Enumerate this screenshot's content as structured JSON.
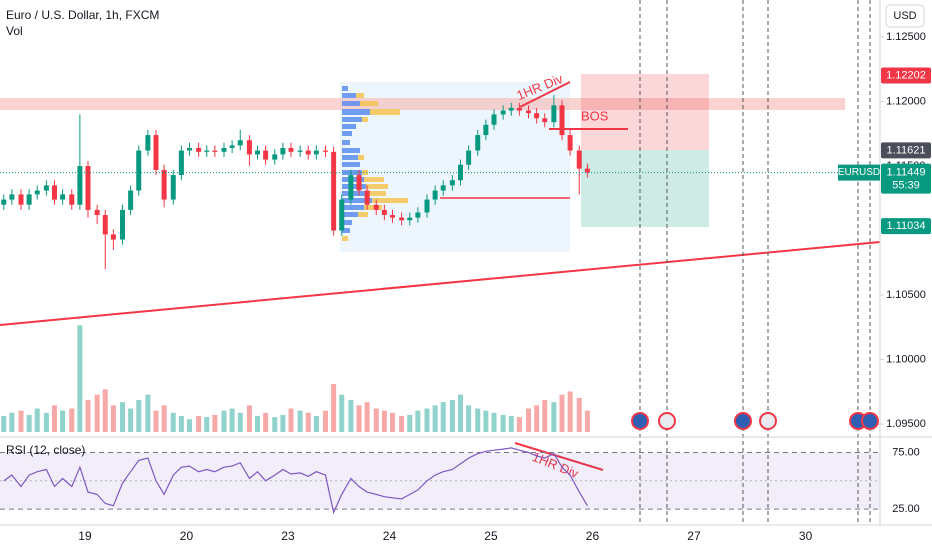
{
  "header": {
    "title": "Euro / U.S. Dollar, 1h, FXCM",
    "volume_label": "Vol",
    "currency": "USD"
  },
  "annotations": {
    "div_price": "1HR Div",
    "bos": "BOS",
    "div_rsi": "1HR Div"
  },
  "chart_data": [
    {
      "type": "candlestick",
      "x": [
        0.2,
        0.28,
        0.37,
        0.45,
        0.53,
        0.62,
        0.7,
        0.78,
        0.87,
        0.95,
        1.03,
        1.12,
        1.2,
        1.28,
        1.37,
        1.45,
        1.53,
        1.62,
        1.7,
        1.78,
        1.87,
        1.95,
        2.03,
        2.12,
        2.2,
        2.28,
        2.37,
        2.45,
        2.53,
        2.62,
        2.7,
        2.78,
        2.87,
        2.95,
        3.03,
        3.12,
        3.2,
        3.28,
        3.37,
        3.45,
        3.53,
        3.62,
        3.7,
        3.78,
        3.87,
        3.95,
        4.03,
        4.12,
        4.2,
        4.28,
        4.37,
        4.45,
        4.53,
        4.62,
        4.7,
        4.78,
        4.87,
        4.95,
        5.03,
        5.12,
        5.2,
        5.28,
        5.37,
        5.45,
        5.53,
        5.62,
        5.7,
        5.78,
        5.87,
        5.95
      ],
      "open": [
        1.112,
        1.1124,
        1.1128,
        1.112,
        1.1128,
        1.1131,
        1.1135,
        1.1124,
        1.1128,
        1.112,
        1.115,
        1.1116,
        1.1112,
        1.1097,
        1.1093,
        1.1116,
        1.1131,
        1.1162,
        1.1174,
        1.1147,
        1.1124,
        1.1143,
        1.1162,
        1.1164,
        1.1161,
        1.1162,
        1.1161,
        1.1164,
        1.1166,
        1.117,
        1.1159,
        1.1162,
        1.1155,
        1.1159,
        1.1164,
        1.1161,
        1.1162,
        1.1159,
        1.1162,
        1.1161,
        1.11,
        1.1124,
        1.1143,
        1.1131,
        1.112,
        1.1116,
        1.1112,
        1.111,
        1.1108,
        1.111,
        1.1114,
        1.1124,
        1.1131,
        1.1135,
        1.1139,
        1.1151,
        1.1162,
        1.1174,
        1.1182,
        1.119,
        1.1193,
        1.1195,
        1.1193,
        1.1191,
        1.1187,
        1.1184,
        1.1197,
        1.1174,
        1.1162,
        1.1148
      ],
      "high": [
        1.1128,
        1.1132,
        1.1132,
        1.1132,
        1.1135,
        1.1139,
        1.1139,
        1.1132,
        1.1132,
        1.119,
        1.1154,
        1.112,
        1.1116,
        1.1101,
        1.112,
        1.1135,
        1.1166,
        1.1178,
        1.1178,
        1.1151,
        1.1147,
        1.1166,
        1.1168,
        1.1168,
        1.1166,
        1.1166,
        1.1168,
        1.117,
        1.1178,
        1.1174,
        1.1166,
        1.1166,
        1.1163,
        1.1168,
        1.1168,
        1.1166,
        1.1166,
        1.1166,
        1.1166,
        1.1165,
        1.1128,
        1.1147,
        1.1147,
        1.1135,
        1.1124,
        1.112,
        1.1116,
        1.1114,
        1.1114,
        1.1118,
        1.1128,
        1.1135,
        1.1139,
        1.1143,
        1.1155,
        1.1166,
        1.1178,
        1.1186,
        1.1194,
        1.1197,
        1.1199,
        1.1199,
        1.1197,
        1.1195,
        1.1191,
        1.1205,
        1.1201,
        1.1178,
        1.1166,
        1.1152
      ],
      "low": [
        1.1116,
        1.112,
        1.1116,
        1.1116,
        1.1124,
        1.1127,
        1.112,
        1.112,
        1.1116,
        1.1116,
        1.111,
        1.1105,
        1.107,
        1.1085,
        1.1089,
        1.1112,
        1.1127,
        1.1158,
        1.1143,
        1.1118,
        1.112,
        1.1139,
        1.1158,
        1.1157,
        1.1157,
        1.1157,
        1.1157,
        1.116,
        1.1162,
        1.115,
        1.1155,
        1.1151,
        1.1151,
        1.1155,
        1.1157,
        1.1157,
        1.1155,
        1.1155,
        1.1157,
        1.1096,
        1.1096,
        1.112,
        1.1127,
        1.1116,
        1.1112,
        1.1108,
        1.1106,
        1.1104,
        1.1104,
        1.1106,
        1.111,
        1.112,
        1.1127,
        1.1131,
        1.1135,
        1.1147,
        1.1158,
        1.117,
        1.1178,
        1.1186,
        1.1189,
        1.1189,
        1.1187,
        1.1183,
        1.118,
        1.118,
        1.117,
        1.1158,
        1.1128,
        1.1141
      ],
      "close": [
        1.1124,
        1.1128,
        1.112,
        1.1128,
        1.1131,
        1.1135,
        1.1124,
        1.1128,
        1.112,
        1.115,
        1.1116,
        1.1112,
        1.1097,
        1.1093,
        1.1116,
        1.1131,
        1.1162,
        1.1174,
        1.1147,
        1.1124,
        1.1143,
        1.1162,
        1.1164,
        1.1161,
        1.1162,
        1.1161,
        1.1164,
        1.1166,
        1.117,
        1.1159,
        1.1162,
        1.1155,
        1.1159,
        1.1164,
        1.1161,
        1.1162,
        1.1159,
        1.1162,
        1.1161,
        1.11,
        1.1124,
        1.1143,
        1.1131,
        1.112,
        1.1116,
        1.1112,
        1.111,
        1.1108,
        1.111,
        1.1114,
        1.1124,
        1.1131,
        1.1135,
        1.1139,
        1.1151,
        1.1162,
        1.1174,
        1.1182,
        1.119,
        1.1193,
        1.1195,
        1.1193,
        1.1191,
        1.1187,
        1.1184,
        1.1197,
        1.1174,
        1.1162,
        1.1148,
        1.1145
      ],
      "up_color": "#089981",
      "down_color": "#f23645",
      "xlim": [
        0.163,
        8.833
      ],
      "xticks": [
        {
          "value": 1,
          "label": "19"
        },
        {
          "value": 2,
          "label": "20"
        },
        {
          "value": 3,
          "label": "23"
        },
        {
          "value": 4,
          "label": "24"
        },
        {
          "value": 5,
          "label": "25"
        },
        {
          "value": 6,
          "label": "26"
        },
        {
          "value": 7,
          "label": "27"
        },
        {
          "value": 8.1,
          "label": "30"
        }
      ],
      "ylim": [
        1.09415,
        1.12787
      ],
      "yticks": [
        {
          "value": 1.125,
          "label": "1.12500"
        },
        {
          "value": 1.12,
          "label": "1.12000"
        },
        {
          "value": 1.115,
          "label": "1.11500"
        },
        {
          "value": 1.105,
          "label": "1.10500"
        },
        {
          "value": 1.1,
          "label": "1.10000"
        },
        {
          "value": 1.095,
          "label": "1.09500"
        }
      ],
      "price_markers": [
        {
          "value": 1.12202,
          "color": "#f23645"
        },
        {
          "value": 1.11621,
          "color": "#4a4e5a"
        },
        {
          "name": "EURUSD",
          "value": 1.11449,
          "countdown": "55:39",
          "color": "#089981"
        },
        {
          "value": 1.11034,
          "color": "#089981"
        }
      ]
    },
    {
      "type": "bar",
      "values": [
        15,
        18,
        20,
        16,
        22,
        18,
        25,
        20,
        22,
        100,
        30,
        35,
        40,
        25,
        28,
        22,
        30,
        35,
        20,
        25,
        18,
        15,
        12,
        15,
        14,
        16,
        20,
        22,
        18,
        25,
        15,
        18,
        14,
        16,
        22,
        20,
        18,
        15,
        20,
        45,
        35,
        30,
        25,
        28,
        22,
        20,
        18,
        15,
        16,
        20,
        22,
        25,
        28,
        30,
        35,
        25,
        22,
        20,
        18,
        16,
        15,
        14,
        22,
        25,
        30,
        28,
        35,
        38,
        32,
        20
      ],
      "ylim": [
        0,
        120
      ],
      "up_color": "#8fd3cc",
      "down_color": "#f7a9a7"
    },
    {
      "type": "line",
      "title": "RSI (12, close)",
      "values": [
        50,
        55,
        45,
        55,
        58,
        60,
        45,
        52,
        45,
        62,
        40,
        38,
        30,
        28,
        48,
        58,
        68,
        70,
        50,
        38,
        55,
        62,
        63,
        58,
        60,
        58,
        62,
        63,
        66,
        52,
        58,
        50,
        55,
        60,
        56,
        57,
        54,
        58,
        55,
        22,
        38,
        52,
        45,
        40,
        38,
        36,
        35,
        34,
        38,
        42,
        50,
        55,
        58,
        60,
        65,
        70,
        74,
        76,
        77,
        78,
        79,
        77,
        75,
        72,
        70,
        74,
        62,
        55,
        40,
        28
      ],
      "color": "#7e57c2",
      "ylim": [
        11,
        86
      ],
      "yticks": [
        {
          "value": 75,
          "label": "75.00"
        },
        {
          "value": 25,
          "label": "25.00"
        }
      ],
      "midline": 50
    }
  ]
}
